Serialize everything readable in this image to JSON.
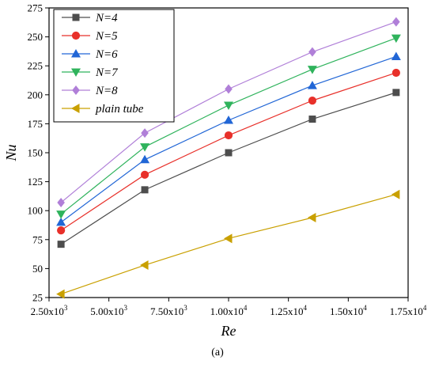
{
  "caption": "(a)",
  "chart_data": {
    "type": "line",
    "xlabel": "Re",
    "ylabel": "Nu",
    "x": [
      3000,
      6500,
      10000,
      13500,
      17000
    ],
    "xlim": [
      2500,
      17500
    ],
    "ylim": [
      25,
      275
    ],
    "xticks": [
      2500,
      5000,
      7500,
      10000,
      12500,
      15000,
      17500
    ],
    "xtick_mantissa": [
      "2.50x10",
      "5.00x10",
      "7.50x10",
      "1.00x10",
      "1.25x10",
      "1.50x10",
      "1.75x10"
    ],
    "xtick_exponent": [
      "3",
      "3",
      "3",
      "4",
      "4",
      "4",
      "4"
    ],
    "yticks": [
      25,
      50,
      75,
      100,
      125,
      150,
      175,
      200,
      225,
      250,
      275
    ],
    "ytick_labels": [
      "25",
      "50",
      "75",
      "100",
      "125",
      "150",
      "175",
      "200",
      "225",
      "250",
      "275"
    ],
    "legend_position": "top-left",
    "grid": false,
    "series": [
      {
        "name": "N=4",
        "marker": "square",
        "color": "#4d4d4d",
        "values": [
          71,
          118,
          150,
          179,
          202
        ]
      },
      {
        "name": "N=5",
        "marker": "circle",
        "color": "#e8302a",
        "values": [
          83,
          131,
          165,
          195,
          219
        ]
      },
      {
        "name": "N=6",
        "marker": "triangle-up",
        "color": "#2166d6",
        "values": [
          90,
          144,
          178,
          208,
          233
        ]
      },
      {
        "name": "N=7",
        "marker": "triangle-down",
        "color": "#2fb35c",
        "values": [
          97,
          155,
          191,
          222,
          249
        ]
      },
      {
        "name": "N=8",
        "marker": "diamond",
        "color": "#b07fd8",
        "values": [
          107,
          167,
          205,
          237,
          263
        ]
      },
      {
        "name": "plain tube",
        "marker": "triangle-left",
        "color": "#c9a000",
        "values": [
          28,
          53,
          76,
          94,
          114
        ]
      }
    ]
  }
}
